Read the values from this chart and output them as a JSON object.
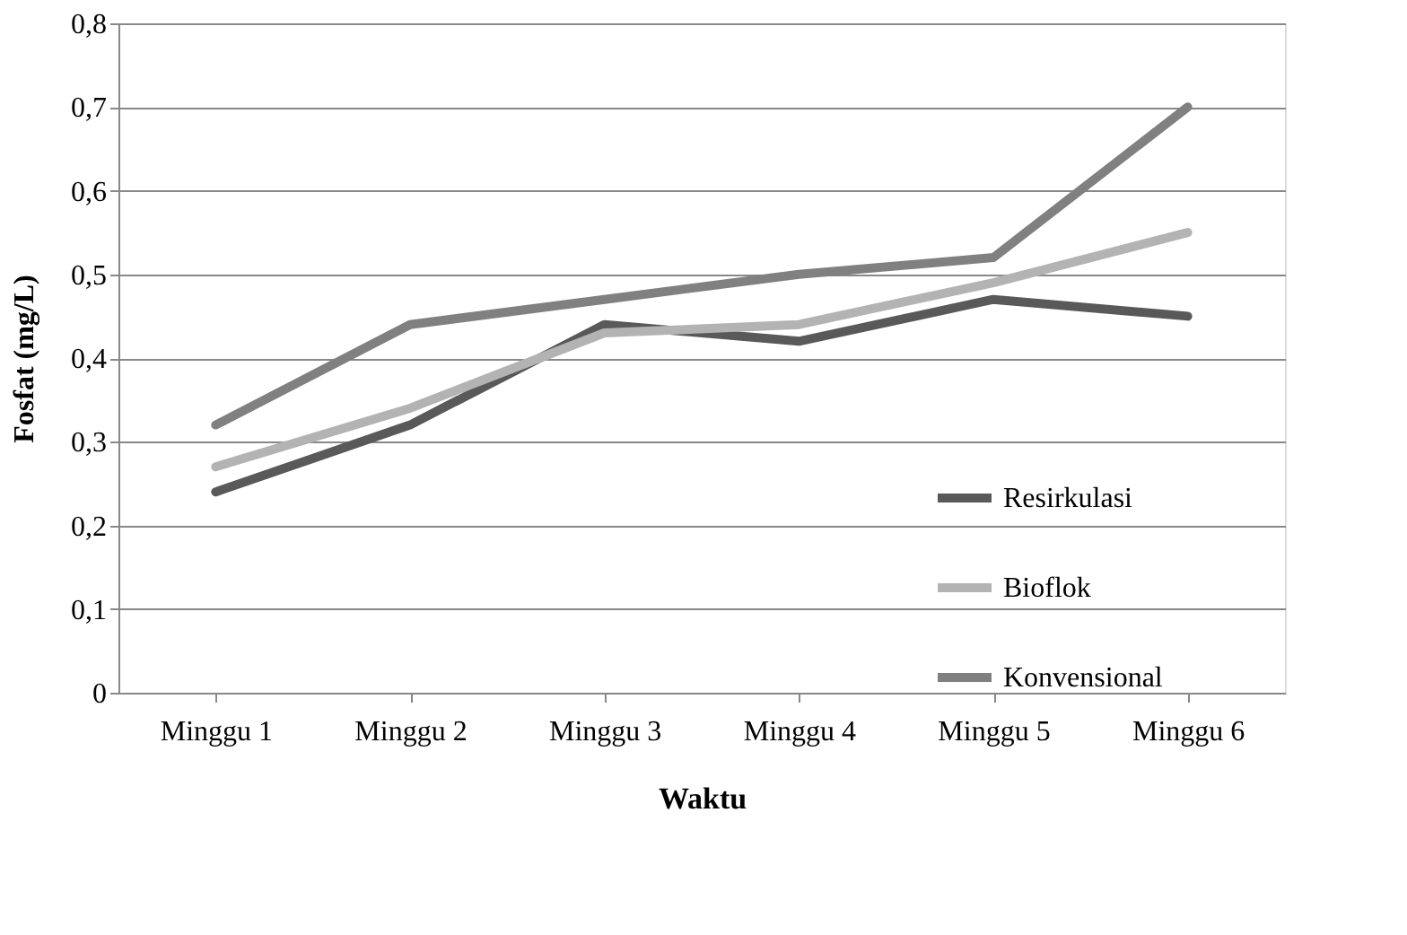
{
  "chart_data": {
    "type": "line",
    "xlabel": "Waktu",
    "ylabel": "Fosfat (mg/L)",
    "categories": [
      "Minggu 1",
      "Minggu 2",
      "Minggu 3",
      "Minggu 4",
      "Minggu 5",
      "Minggu 6"
    ],
    "series": [
      {
        "name": "Resirkulasi",
        "color": "#595959",
        "values": [
          0.24,
          0.32,
          0.44,
          0.42,
          0.47,
          0.45
        ]
      },
      {
        "name": "Bioflok",
        "color": "#b3b3b3",
        "values": [
          0.27,
          0.34,
          0.43,
          0.44,
          0.49,
          0.55
        ]
      },
      {
        "name": "Konvensional",
        "color": "#808080",
        "values": [
          0.32,
          0.44,
          0.47,
          0.5,
          0.52,
          0.7
        ]
      }
    ],
    "ylim": [
      0,
      0.8
    ],
    "yticks": [
      0,
      {
        "value": 0.1,
        "label": "0,1"
      },
      {
        "value": 0.2,
        "label": "0,2"
      },
      {
        "value": 0.3,
        "label": "0,3"
      },
      {
        "value": 0.4,
        "label": "0,4"
      },
      {
        "value": 0.5,
        "label": "0,5"
      },
      {
        "value": 0.6,
        "label": "0,6"
      },
      {
        "value": 0.7,
        "label": "0,7"
      },
      {
        "value": 0.8,
        "label": "0,8"
      }
    ],
    "grid": "y",
    "legend": "bottom right",
    "marker": "none",
    "line_style": "solid"
  }
}
